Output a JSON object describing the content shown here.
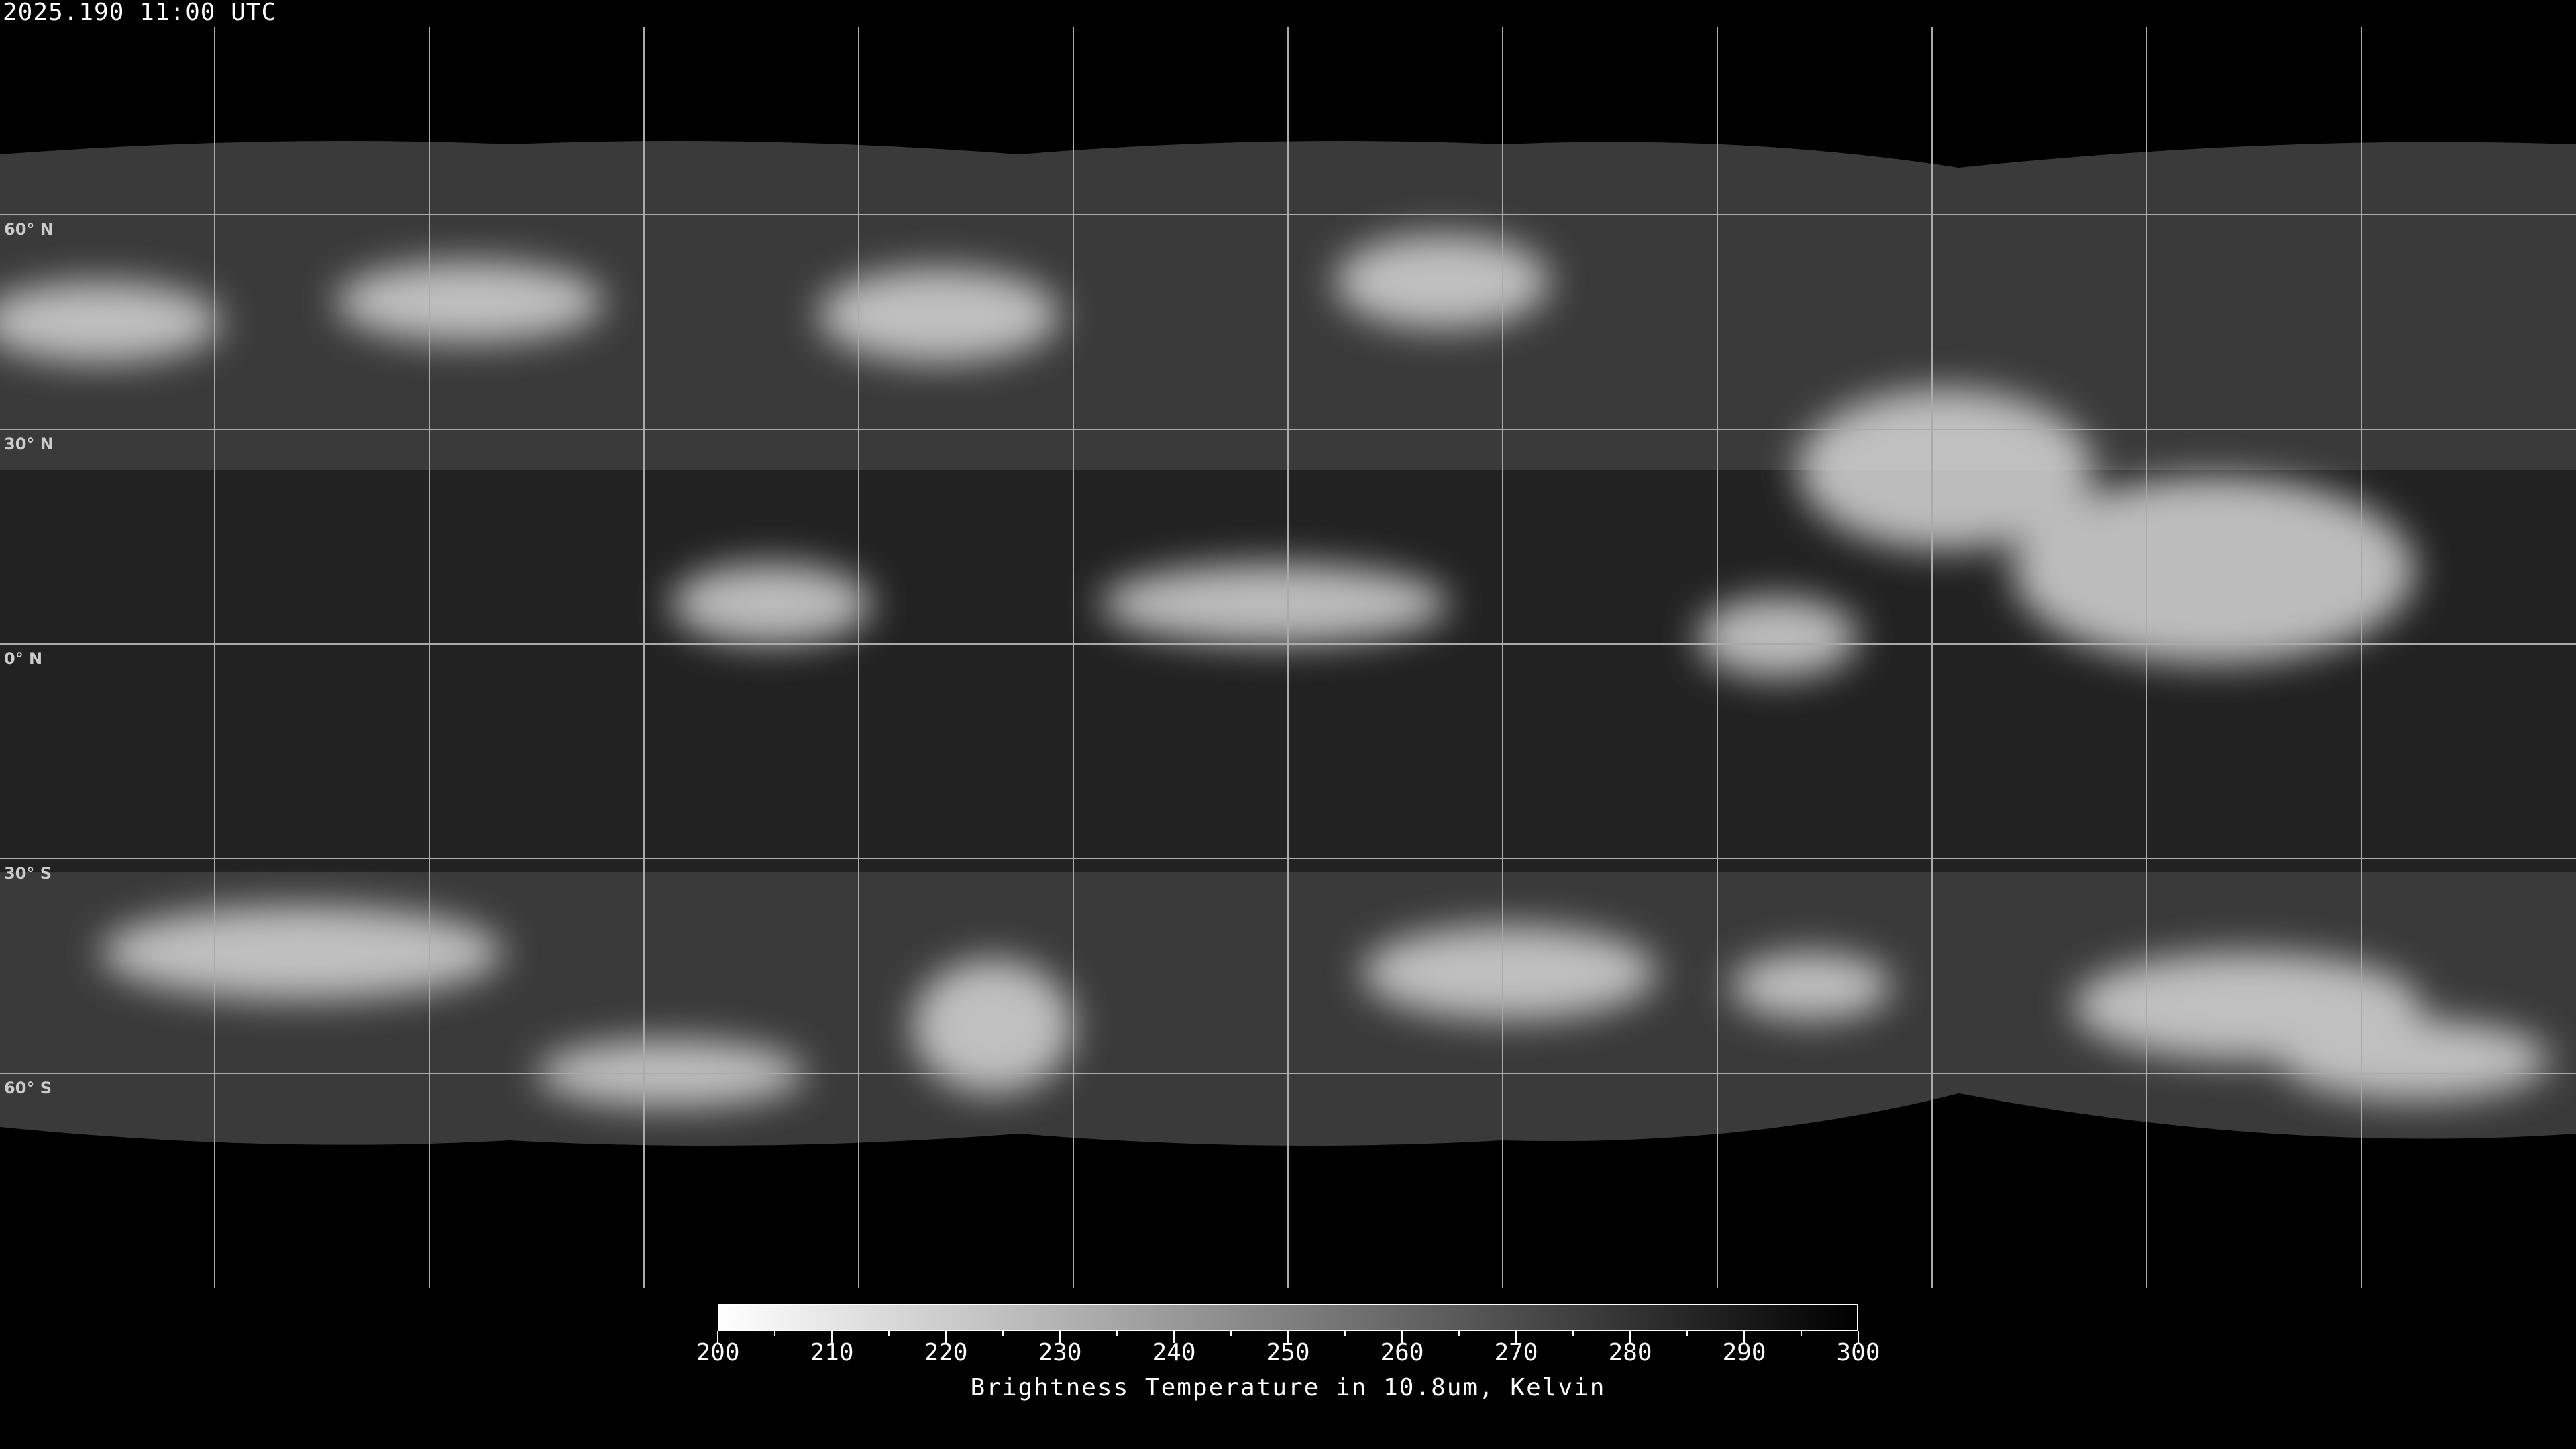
{
  "title": "2025.190 11:00 UTC",
  "map": {
    "projection": "equirectangular",
    "grid_spacing_degrees": 30,
    "lat_labels": [
      "60° N",
      "30° N",
      "0° N",
      "30° S",
      "60° S"
    ],
    "lat_values": [
      60,
      30,
      0,
      -30,
      -60
    ]
  },
  "colorbar": {
    "min": 200,
    "max": 300,
    "colormap": "white-to-black (inverted grayscale)",
    "color_low": "#ffffff",
    "color_high": "#000000",
    "tick_labels": [
      "200",
      "210",
      "220",
      "230",
      "240",
      "250",
      "260",
      "270",
      "280",
      "290",
      "300"
    ],
    "label": "Brightness Temperature in 10.8um, Kelvin"
  }
}
